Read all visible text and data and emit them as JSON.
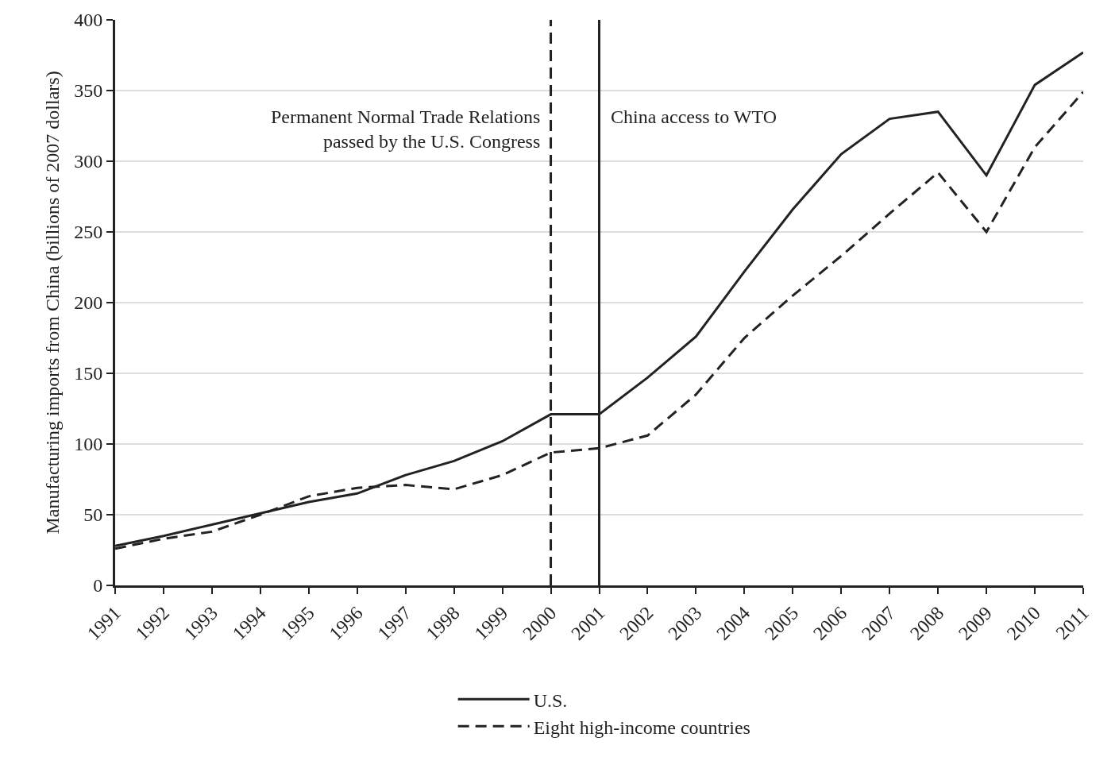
{
  "chart_data": {
    "type": "line",
    "ylabel": "Manufacturing imports from China (billions of 2007 dollars)",
    "x": [
      1991,
      1992,
      1993,
      1994,
      1995,
      1996,
      1997,
      1998,
      1999,
      2000,
      2001,
      2002,
      2003,
      2004,
      2005,
      2006,
      2007,
      2008,
      2009,
      2010,
      2011
    ],
    "series": [
      {
        "name": "U.S.",
        "color": "#222222",
        "line_style": "solid",
        "values": [
          28,
          35,
          43,
          51,
          59,
          65,
          78,
          88,
          102,
          121,
          121,
          147,
          176,
          222,
          266,
          305,
          330,
          335,
          290,
          354,
          377
        ]
      },
      {
        "name": "Eight high-income countries",
        "color": "#222222",
        "line_style": "dashed",
        "values": [
          26,
          33,
          38,
          50,
          63,
          69,
          71,
          68,
          78,
          94,
          97,
          106,
          135,
          175,
          205,
          233,
          263,
          292,
          250,
          310,
          349
        ]
      }
    ],
    "xlim": [
      1991,
      2011
    ],
    "xticks": [
      1991,
      1992,
      1993,
      1994,
      1995,
      1996,
      1997,
      1998,
      1999,
      2000,
      2001,
      2002,
      2003,
      2004,
      2005,
      2006,
      2007,
      2008,
      2009,
      2010,
      2011
    ],
    "ylim": [
      0,
      400
    ],
    "yticks": [
      0,
      50,
      100,
      150,
      200,
      250,
      300,
      350,
      400
    ],
    "grid": "y",
    "legend": "bottom",
    "marker": "none",
    "ref_lines": [
      {
        "axis": "x",
        "value": 2000,
        "label": "Permanent Normal Trade Relations\npassed by the U.S. Congress",
        "color": "#222222",
        "line_style": "dashed"
      },
      {
        "axis": "x",
        "value": 2001,
        "label": "China access to WTO",
        "color": "#222222",
        "line_style": "solid"
      }
    ]
  }
}
